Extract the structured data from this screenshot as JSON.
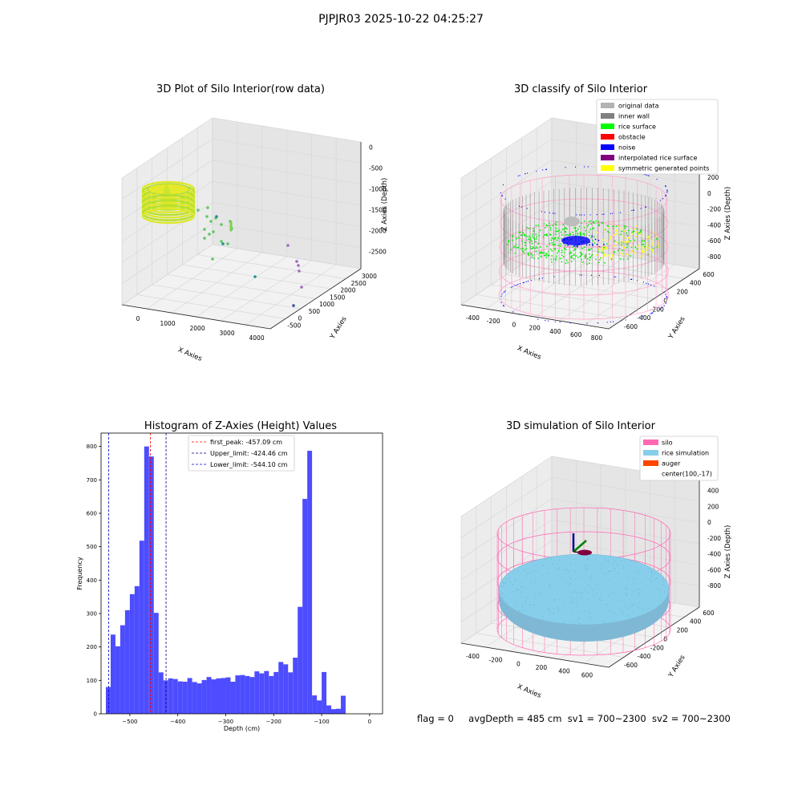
{
  "figure": {
    "suptitle": "PJPJR03 2025-10-22 04:25:27"
  },
  "chart_data": [
    {
      "type": "scatter3d",
      "title": "3D Plot of Silo Interior(row data)",
      "xlabel": "X Axies",
      "ylabel": "Y Axies",
      "zlabel": "Z Axies (Depth)",
      "xticks": [
        "0",
        "1000",
        "2000",
        "3000",
        "4000"
      ],
      "yticks": [
        "-500",
        "0",
        "500",
        "1000",
        "1500",
        "2000",
        "2500",
        "3000"
      ],
      "zticks": [
        "0",
        "-500",
        "-1000",
        "-1500",
        "-2000",
        "-2500"
      ],
      "xlim": [
        -600,
        4200
      ],
      "ylim": [
        -700,
        3300
      ],
      "zlim": [
        -2800,
        100
      ],
      "grid": true,
      "colors": {
        "main": "#c8e62a",
        "scatter_green": "#5dc863",
        "scatter_teal": "#21918c",
        "scatter_purple": "#9e6cc0",
        "scatter_dark": "#3b528b"
      }
    },
    {
      "type": "scatter3d",
      "title": "3D classify of Silo Interior",
      "xlabel": "X Axies",
      "ylabel": "Y Axies",
      "zlabel": "Z Axies (Depth)",
      "xticks": [
        "-400",
        "-200",
        "0",
        "200",
        "400",
        "600",
        "800"
      ],
      "yticks": [
        "-600",
        "-400",
        "-200",
        "0",
        "200",
        "400",
        "600"
      ],
      "zticks": [
        "200",
        "0",
        "-200",
        "-400",
        "-600",
        "-800"
      ],
      "zticks_partial": [
        "00"
      ],
      "xlim": [
        -550,
        850
      ],
      "ylim": [
        -700,
        700
      ],
      "zlim": [
        -950,
        300
      ],
      "legend_position": "top-right",
      "legend": [
        {
          "label": "original data",
          "color": "#b3b3b3"
        },
        {
          "label": "inner wall",
          "color": "#808080"
        },
        {
          "label": "rice surface",
          "color": "#00ff00"
        },
        {
          "label": "obstacle",
          "color": "#ff0000"
        },
        {
          "label": "noise",
          "color": "#0000ff"
        },
        {
          "label": "interpolated rice surface",
          "color": "#800080"
        },
        {
          "label": "symmetric generated points",
          "color": "#ffff00"
        }
      ],
      "colors": {
        "silo_wire": "#ff9ec8"
      },
      "grid": true
    },
    {
      "type": "bar",
      "title": "Histogram of Z-Axies (Height) Values",
      "xlabel": "Depth (cm)",
      "ylabel": "Frequency",
      "bin_start": -550,
      "bin_width": 10,
      "values": [
        80,
        237,
        202,
        265,
        310,
        358,
        382,
        518,
        800,
        770,
        302,
        124,
        100,
        106,
        104,
        97,
        96,
        107,
        95,
        91,
        101,
        110,
        103,
        106,
        107,
        109,
        96,
        115,
        116,
        113,
        110,
        127,
        121,
        128,
        113,
        125,
        155,
        148,
        124,
        168,
        320,
        643,
        787,
        55,
        40,
        125,
        25,
        14,
        15,
        54
      ],
      "xticks": [
        "-500",
        "-400",
        "-300",
        "-200",
        "-100",
        "0"
      ],
      "xtick_values": [
        -500,
        -400,
        -300,
        -200,
        -100,
        0
      ],
      "yticks": [
        "0",
        "100",
        "200",
        "300",
        "400",
        "500",
        "600",
        "700",
        "800"
      ],
      "ytick_values": [
        0,
        100,
        200,
        300,
        400,
        500,
        600,
        700,
        800
      ],
      "xlim": [
        -560,
        27
      ],
      "ylim": [
        0,
        840
      ],
      "bar_color": "#4d4dff",
      "lines": [
        {
          "label": "first_peak: -457.09 cm",
          "x": -457.09,
          "color": "#ff0000"
        },
        {
          "label": "Upper_limit: -424.46 cm",
          "x": -424.46,
          "color": "#00008b"
        },
        {
          "label": "Lower_limit: -544.10 cm",
          "x": -544.1,
          "color": "#0000cd"
        }
      ],
      "legend_position": "top-center"
    },
    {
      "type": "surface3d",
      "title": "3D simulation of Silo Interior",
      "xlabel": "X Axies",
      "ylabel": "Y Axies",
      "zlabel": "Z Axies (Depth)",
      "xticks": [
        "-400",
        "-200",
        "0",
        "200",
        "400",
        "600"
      ],
      "yticks": [
        "-600",
        "-400",
        "-200",
        "0",
        "200",
        "400",
        "600"
      ],
      "zticks": [
        "400",
        "200",
        "0",
        "-200",
        "-400",
        "-600",
        "-800"
      ],
      "xlim": [
        -550,
        750
      ],
      "ylim": [
        -700,
        700
      ],
      "zlim": [
        -950,
        450
      ],
      "legend_position": "top-right",
      "legend": [
        {
          "label": "silo",
          "color": "#ff69b4"
        },
        {
          "label": "rice simulation",
          "color": "#87ceeb"
        },
        {
          "label": "auger",
          "color": "#ff4500"
        },
        {
          "label": "center(100,-17)",
          "color": ""
        }
      ],
      "grid": true
    }
  ],
  "footer": {
    "flag": "flag = 0",
    "avg_depth": "avgDepth = 485 cm",
    "sv1": "sv1 = 700~2300",
    "sv2": "sv2 = 700~2300"
  }
}
